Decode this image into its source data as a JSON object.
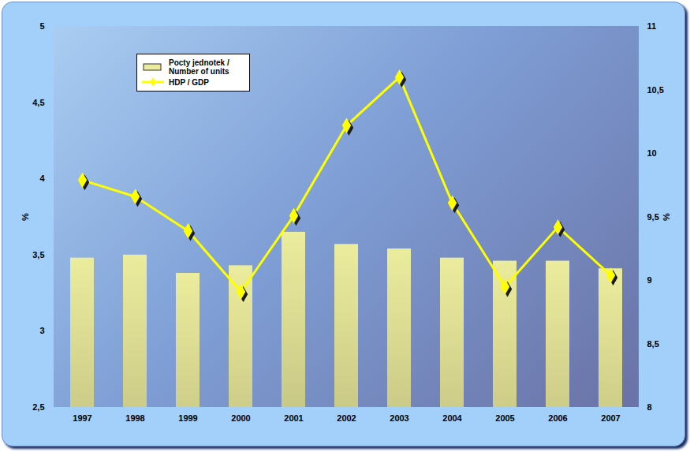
{
  "chart_data": {
    "type": "bar",
    "categories": [
      "1997",
      "1998",
      "1999",
      "2000",
      "2001",
      "2002",
      "2003",
      "2004",
      "2005",
      "2006",
      "2007"
    ],
    "series": [
      {
        "name": "Pocty jednotek / Number of units",
        "type": "bar",
        "color": "#ecec9e",
        "values": [
          3.48,
          3.5,
          3.38,
          3.43,
          3.65,
          3.57,
          3.54,
          3.48,
          3.46,
          3.46,
          3.41
        ]
      },
      {
        "name": "HDP / GDP",
        "type": "line",
        "color": "#ffff00",
        "marker": "diamond",
        "axis": "y2",
        "values": [
          9.79,
          9.66,
          9.39,
          8.91,
          9.51,
          10.22,
          10.6,
          9.61,
          8.95,
          9.42,
          9.04
        ]
      }
    ],
    "ylabel": "%",
    "y2label": "%",
    "ylim": [
      2.5,
      5
    ],
    "yticks": [
      {
        "value": 2.5,
        "label": "2,5"
      },
      3,
      {
        "value": 3.5,
        "label": "3,5"
      },
      4,
      {
        "value": 4.5,
        "label": "4,5"
      },
      5
    ],
    "y2lim": [
      8,
      11
    ],
    "y2ticks": [
      8,
      {
        "value": 8.5,
        "label": "8,5"
      },
      9,
      {
        "value": 9.5,
        "label": "9,5"
      },
      10,
      {
        "value": 10.5,
        "label": "10,5"
      },
      11
    ],
    "legend": "upper left",
    "grid": false
  }
}
